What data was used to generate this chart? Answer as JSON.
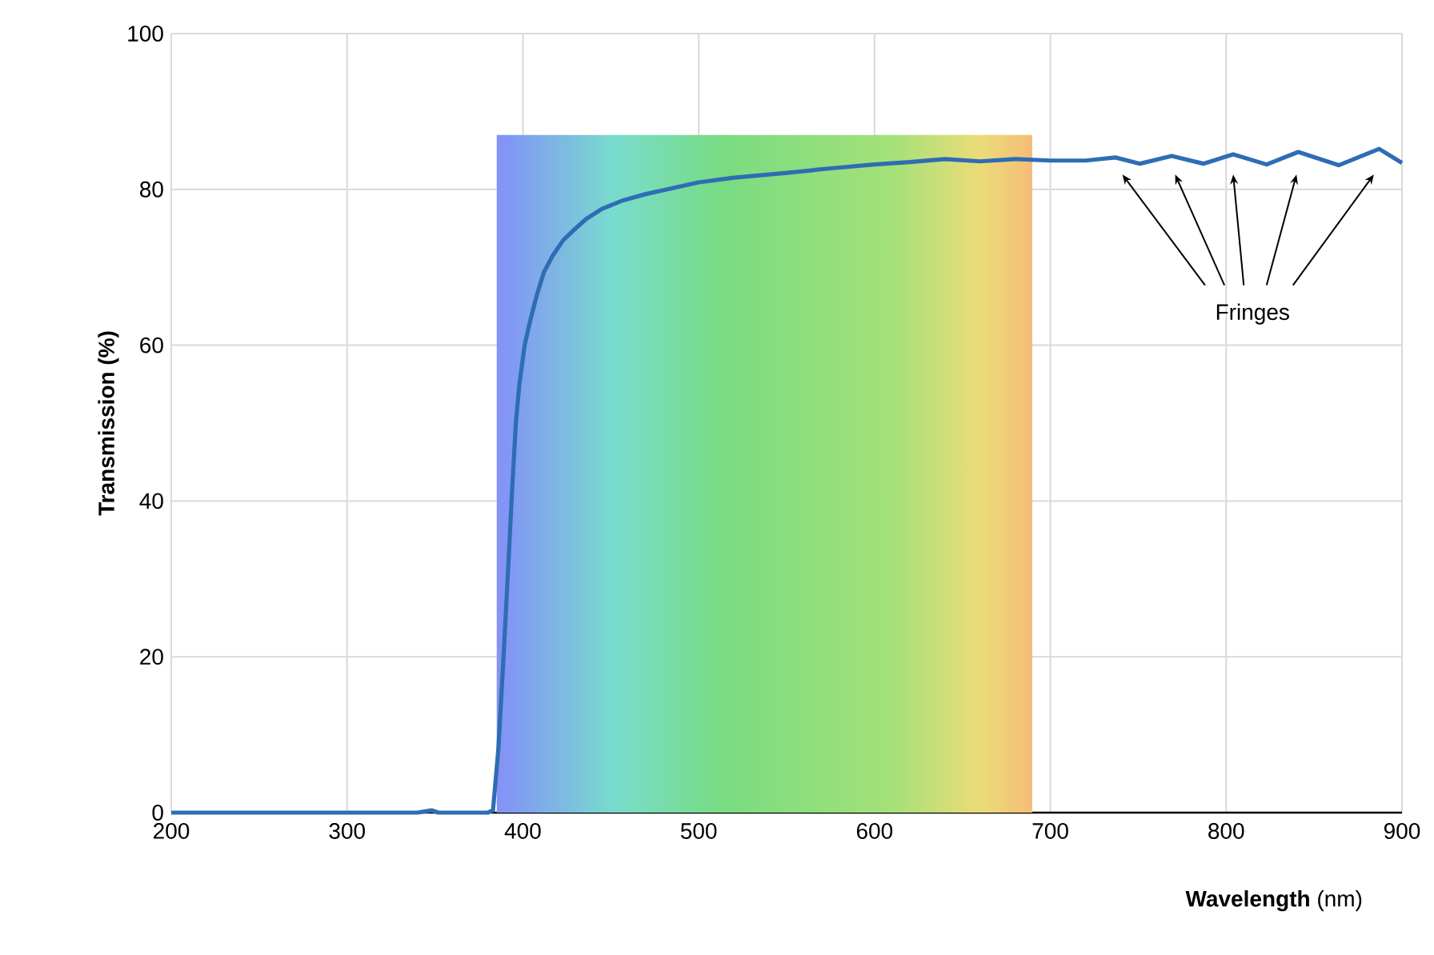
{
  "chart_data": {
    "type": "line",
    "xlabel": "**Wavelength** (nm)",
    "ylabel": "Transmission (%)",
    "x": [
      200,
      300,
      340,
      348,
      352,
      360,
      380,
      383,
      386,
      389,
      392,
      394,
      396,
      398,
      401,
      404,
      408,
      412,
      417,
      423,
      430,
      436,
      445,
      457,
      470,
      482,
      500,
      520,
      549,
      575,
      600,
      620,
      640,
      660,
      680,
      700,
      720,
      737,
      751,
      769,
      787,
      804,
      823,
      841,
      864,
      887,
      900
    ],
    "series": [
      {
        "color": "#2e6db4",
        "values": [
          0,
          0,
          0,
          0.3,
          0,
          0,
          0,
          0.3,
          8,
          20,
          33,
          42,
          50,
          55,
          60,
          63,
          66.5,
          69.4,
          71.5,
          73.5,
          75,
          76.2,
          77.5,
          78.6,
          79.4,
          80,
          80.9,
          81.5,
          82.1,
          82.7,
          83.2,
          83.5,
          83.9,
          83.6,
          83.9,
          83.7,
          83.7,
          84.1,
          83.3,
          84.3,
          83.3,
          84.5,
          83.2,
          84.8,
          83.1,
          85.2,
          83.4
        ]
      }
    ],
    "xlim": [
      200,
      900
    ],
    "ylim": [
      0,
      100
    ],
    "xticks": [
      200,
      300,
      400,
      500,
      600,
      700,
      800,
      900
    ],
    "yticks": [
      0,
      20,
      40,
      60,
      80,
      100
    ],
    "grid": true,
    "line_style": "solid",
    "marker": "none",
    "bands": [
      {
        "axis": "x",
        "from": 385,
        "to": 690
      }
    ],
    "annotations": [
      "Fringes"
    ]
  }
}
